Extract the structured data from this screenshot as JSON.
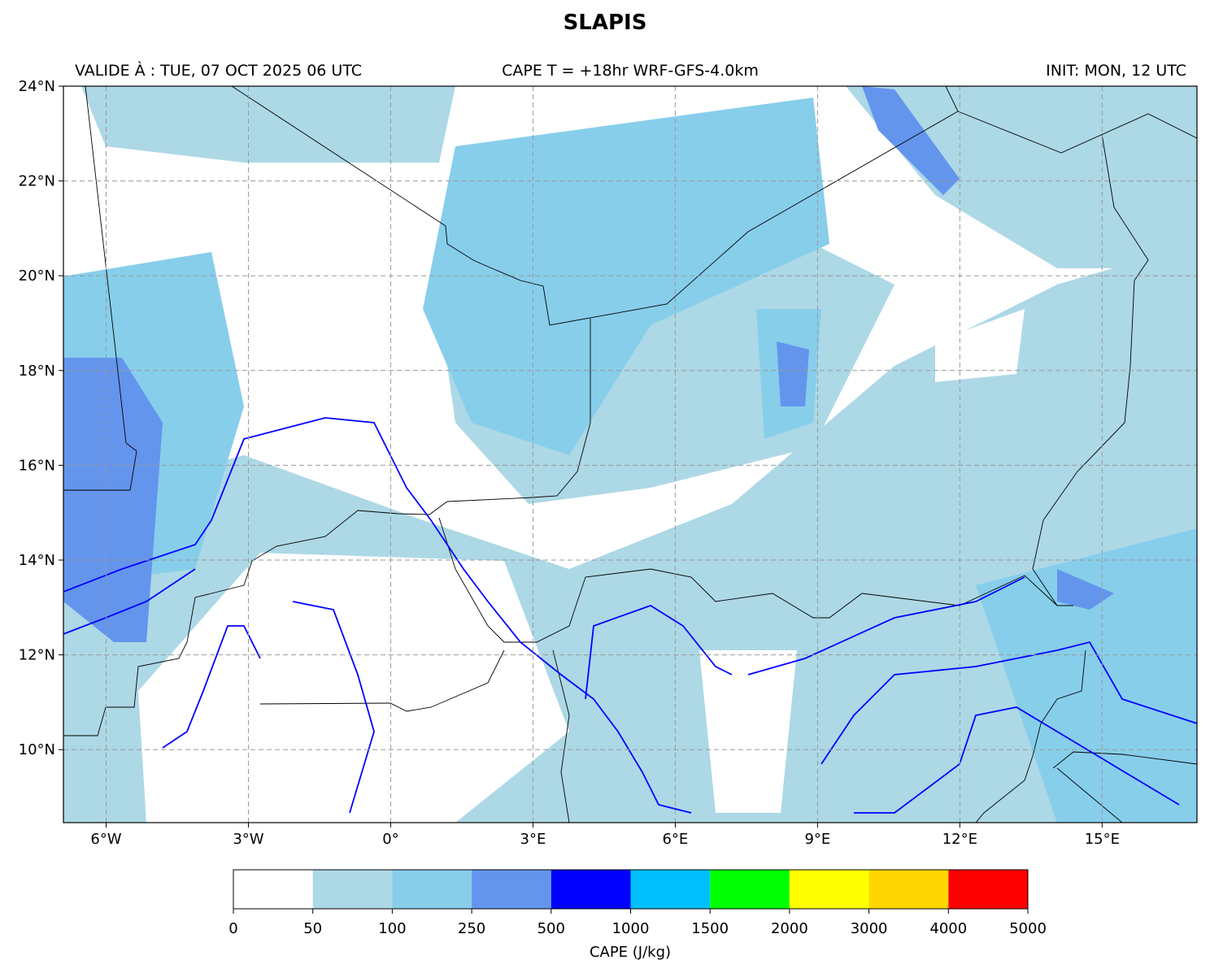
{
  "title": "SLAPIS",
  "valid": "VALIDE À : TUE, 07 OCT 2025 06 UTC",
  "run": "CAPE T = +18hr WRF-GFS-4.0km",
  "init": "INIT: MON, 12 UTC",
  "map": {
    "lonlim": [
      -6.9,
      17
    ],
    "latlim": [
      8.46,
      24
    ],
    "lon_ticks": [
      {
        "value": -6,
        "label": "6°W"
      },
      {
        "value": -3,
        "label": "3°W"
      },
      {
        "value": 0,
        "label": "0°"
      },
      {
        "value": 3,
        "label": "3°E"
      },
      {
        "value": 6,
        "label": "6°E"
      },
      {
        "value": 9,
        "label": "9°E"
      },
      {
        "value": 12,
        "label": "12°E"
      },
      {
        "value": 15,
        "label": "15°E"
      }
    ],
    "lat_ticks": [
      {
        "value": 10,
        "label": "10°N"
      },
      {
        "value": 12,
        "label": "12°N"
      },
      {
        "value": 14,
        "label": "14°N"
      },
      {
        "value": 16,
        "label": "16°N"
      },
      {
        "value": 18,
        "label": "18°N"
      },
      {
        "value": 20,
        "label": "20°N"
      },
      {
        "value": 22,
        "label": "22°N"
      },
      {
        "value": 24,
        "label": "24°N"
      }
    ],
    "grid": true
  },
  "colorbar": {
    "label": "CAPE (J/kg)",
    "levels": [
      0,
      50,
      100,
      250,
      500,
      1000,
      1500,
      2000,
      3000,
      4000,
      5000
    ],
    "colors": [
      "#ffffff",
      "#add8e6",
      "#87ceeb",
      "#6495ed",
      "#0000ff",
      "#00bfff",
      "#00ff00",
      "#ffff00",
      "#ffd700",
      "#ff0000"
    ]
  }
}
